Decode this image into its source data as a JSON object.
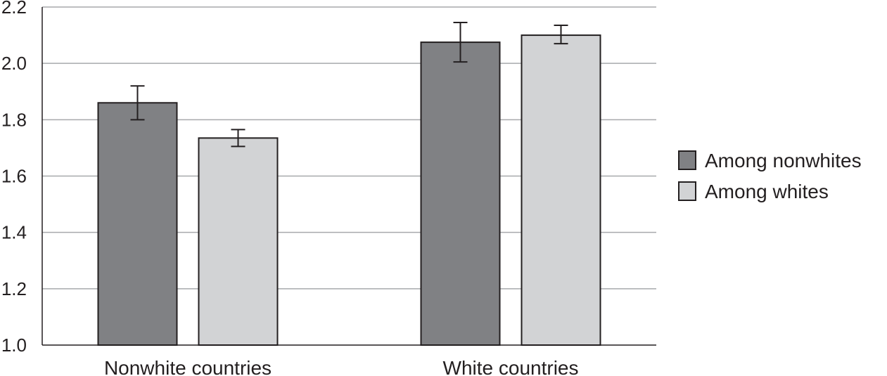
{
  "chart_data": {
    "type": "bar",
    "categories": [
      "Nonwhite countries",
      "White countries"
    ],
    "series": [
      {
        "name": "Among nonwhites",
        "values": [
          1.86,
          2.075
        ],
        "error_low": [
          1.8,
          2.005
        ],
        "error_high": [
          1.92,
          2.145
        ],
        "color": "#808184"
      },
      {
        "name": "Among whites",
        "values": [
          1.735,
          2.1
        ],
        "error_low": [
          1.705,
          2.07
        ],
        "error_high": [
          1.765,
          2.135
        ],
        "color": "#d2d3d5"
      }
    ],
    "ylim": [
      1.0,
      2.2
    ],
    "yticks": [
      "1.0",
      "1.2",
      "1.4",
      "1.6",
      "1.8",
      "2.0",
      "2.2"
    ],
    "title": "",
    "xlabel": "",
    "ylabel": "",
    "grid": true,
    "legend_position": "right"
  }
}
